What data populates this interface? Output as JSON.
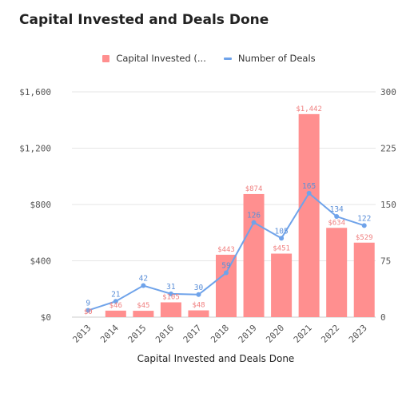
{
  "chart_data": {
    "type": "bar",
    "title": "Capital Invested and Deals Done",
    "xlabel": "Capital Invested and Deals Done",
    "categories": [
      "2013",
      "2014",
      "2015",
      "2016",
      "2017",
      "2018",
      "2019",
      "2020",
      "2021",
      "2022",
      "2023"
    ],
    "series": [
      {
        "name": "Capital Invested (...",
        "type": "bar",
        "axis": "left",
        "color": "#ff8f8f",
        "values": [
          0,
          46,
          45,
          105,
          48,
          443,
          874,
          451,
          1442,
          634,
          529
        ],
        "labels": [
          "$0",
          "$46",
          "$45",
          "$105",
          "$48",
          "$443",
          "$874",
          "$451",
          "$1,442",
          "$634",
          "$529"
        ]
      },
      {
        "name": "Number of Deals",
        "type": "line",
        "axis": "right",
        "color": "#6fa3ea",
        "values": [
          9,
          21,
          42,
          31,
          30,
          59,
          126,
          105,
          165,
          134,
          122
        ],
        "labels": [
          "9",
          "21",
          "42",
          "31",
          "30",
          "59",
          "126",
          "105",
          "165",
          "134",
          "122"
        ]
      }
    ],
    "y_left": {
      "ylim": [
        0,
        1600
      ],
      "ticks": [
        0,
        400,
        800,
        1200,
        1600
      ],
      "tick_labels": [
        "$0",
        "$400",
        "$800",
        "$1,200",
        "$1,600"
      ]
    },
    "y_right": {
      "ylim": [
        0,
        300
      ],
      "ticks": [
        0,
        75,
        150,
        225,
        300
      ],
      "tick_labels": [
        "0",
        "75",
        "150",
        "225",
        "300"
      ]
    },
    "grid": true,
    "legend": "top-center"
  }
}
